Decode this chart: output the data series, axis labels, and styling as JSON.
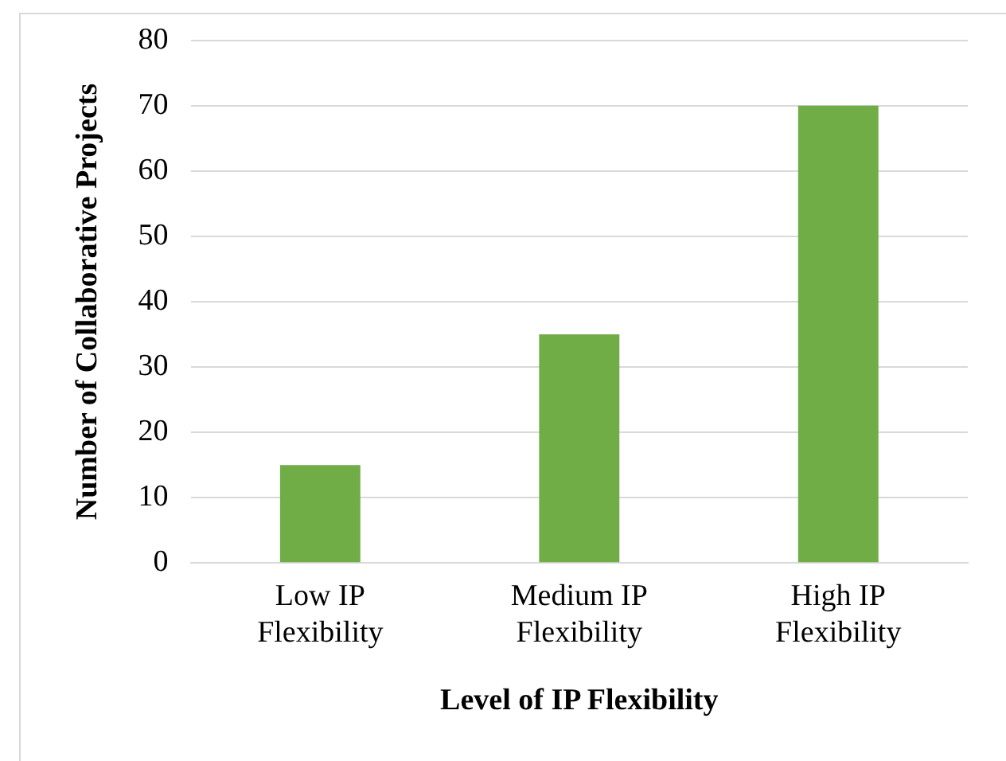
{
  "chart_data": {
    "type": "bar",
    "xlabel": "Level of IP Flexibility",
    "ylabel": "Number of Collaborative Projects",
    "categories": [
      "Low IP Flexibility",
      "Medium IP Flexibility",
      "High IP Flexibility"
    ],
    "values": [
      15,
      35,
      70
    ],
    "color": "#70ad47",
    "ylim": [
      0,
      80
    ],
    "yticks": [
      0,
      10,
      20,
      30,
      40,
      50,
      60,
      70,
      80
    ],
    "grid": "y",
    "legend": false
  }
}
